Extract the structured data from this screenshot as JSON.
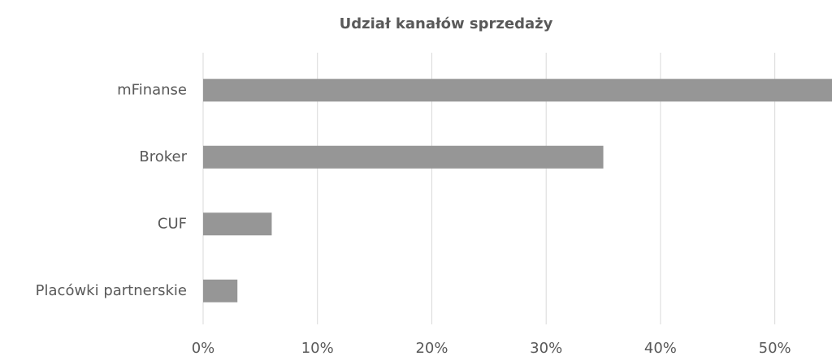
{
  "chart_data": {
    "type": "bar",
    "orientation": "horizontal",
    "title": "Udział kanałów sprzedaży",
    "categories": [
      "mFinanse",
      "Broker",
      "CUF",
      "Placówki partnerskie"
    ],
    "values": [
      55,
      35,
      6,
      3
    ],
    "color": "#969696",
    "xlim": [
      0,
      55
    ],
    "xticks": [
      {
        "value": 0,
        "label": "0%"
      },
      {
        "value": 10,
        "label": "10%"
      },
      {
        "value": 20,
        "label": "20%"
      },
      {
        "value": 30,
        "label": "30%"
      },
      {
        "value": 40,
        "label": "40%"
      },
      {
        "value": 50,
        "label": "50%"
      }
    ],
    "grid": true
  }
}
